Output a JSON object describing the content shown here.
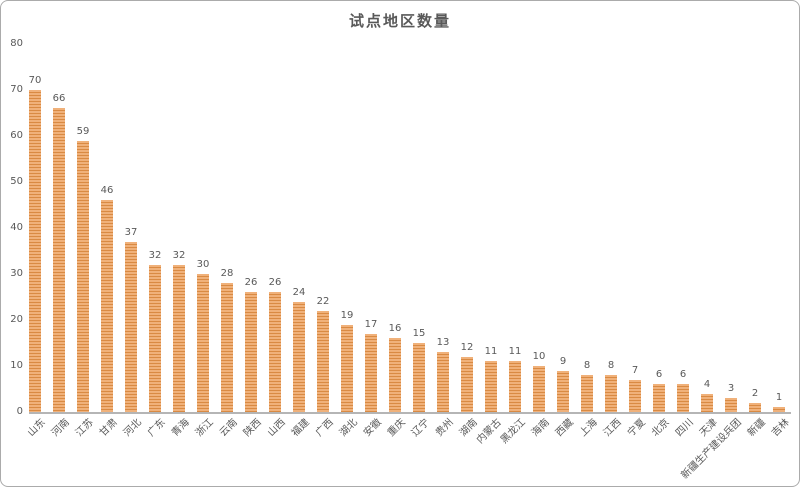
{
  "page": {
    "background_color": "#ffffff",
    "border_color": "#ababab"
  },
  "chart_data": {
    "type": "bar",
    "title": "试点地区数量",
    "xlabel": "",
    "ylabel": "",
    "categories": [
      "山东",
      "河南",
      "江苏",
      "甘肃",
      "河北",
      "广东",
      "青海",
      "浙江",
      "云南",
      "陕西",
      "山西",
      "福建",
      "广西",
      "湖北",
      "安徽",
      "重庆",
      "辽宁",
      "贵州",
      "湖南",
      "内蒙古",
      "黑龙江",
      "海南",
      "西藏",
      "上海",
      "江西",
      "宁夏",
      "北京",
      "四川",
      "天津",
      "新疆生产建设兵团",
      "新疆",
      "吉林"
    ],
    "values": [
      70,
      66,
      59,
      46,
      37,
      32,
      32,
      30,
      28,
      26,
      26,
      24,
      22,
      19,
      17,
      16,
      15,
      13,
      12,
      11,
      11,
      10,
      9,
      8,
      8,
      7,
      6,
      6,
      4,
      3,
      2,
      1
    ],
    "ylim": [
      0,
      80
    ],
    "yticks": [
      0,
      10,
      20,
      30,
      40,
      50,
      60,
      70,
      80
    ],
    "grid": false,
    "legend_position": "none",
    "value_labels_shown": true,
    "x_label_rotation_deg": -45,
    "colors": {
      "bar_stripe_light": "#f0b17a",
      "bar_stripe_dark": "#d98a43",
      "title_text": "#595959",
      "axis_text": "#595959",
      "value_label_text": "#595959",
      "axis_line": "#b5b5b5"
    }
  }
}
